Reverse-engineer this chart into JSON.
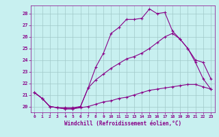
{
  "xlabel": "Windchill (Refroidissement éolien,°C)",
  "bg_color": "#c8f0f0",
  "line_color": "#880088",
  "grid_color": "#a0c8c8",
  "xlim": [
    -0.5,
    23.5
  ],
  "ylim": [
    19.5,
    28.7
  ],
  "xticks": [
    0,
    1,
    2,
    3,
    4,
    5,
    6,
    7,
    8,
    9,
    10,
    11,
    12,
    13,
    14,
    15,
    16,
    17,
    18,
    19,
    20,
    21,
    22,
    23
  ],
  "yticks": [
    20,
    21,
    22,
    23,
    24,
    25,
    26,
    27,
    28
  ],
  "line1_x": [
    0,
    1,
    2,
    3,
    4,
    5,
    6,
    7,
    8,
    9,
    10,
    11,
    12,
    13,
    14,
    15,
    16,
    17,
    18,
    19,
    20,
    21,
    22,
    23
  ],
  "line1_y": [
    21.2,
    20.7,
    20.0,
    19.9,
    19.8,
    19.8,
    20.0,
    21.6,
    23.4,
    24.6,
    26.3,
    26.8,
    27.5,
    27.5,
    27.6,
    28.4,
    28.0,
    28.1,
    26.5,
    25.8,
    25.0,
    23.8,
    22.4,
    21.5
  ],
  "line2_x": [
    0,
    1,
    2,
    3,
    4,
    5,
    6,
    7,
    8,
    9,
    10,
    11,
    12,
    13,
    14,
    15,
    16,
    17,
    18,
    19,
    20,
    21,
    22,
    23
  ],
  "line2_y": [
    21.2,
    20.7,
    20.0,
    19.9,
    19.9,
    19.9,
    20.0,
    21.6,
    22.3,
    22.8,
    23.3,
    23.7,
    24.1,
    24.3,
    24.6,
    25.0,
    25.5,
    26.0,
    26.3,
    25.8,
    25.0,
    24.0,
    23.8,
    22.4
  ],
  "line3_x": [
    0,
    1,
    2,
    3,
    4,
    5,
    6,
    7,
    8,
    9,
    10,
    11,
    12,
    13,
    14,
    15,
    16,
    17,
    18,
    19,
    20,
    21,
    22,
    23
  ],
  "line3_y": [
    21.2,
    20.7,
    20.0,
    19.9,
    19.8,
    19.8,
    19.9,
    20.0,
    20.2,
    20.4,
    20.5,
    20.7,
    20.8,
    21.0,
    21.2,
    21.4,
    21.5,
    21.6,
    21.7,
    21.8,
    21.9,
    21.9,
    21.7,
    21.5
  ]
}
